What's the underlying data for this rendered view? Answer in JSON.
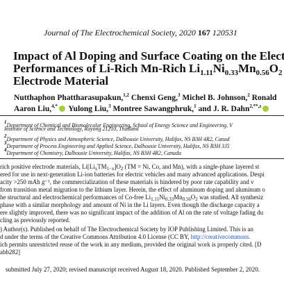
{
  "header": {
    "journal_name": "Journal of The Electrochemical Society",
    "year": ", 2020 ",
    "volume": "167",
    "article_number": " 120531"
  },
  "title": {
    "line1": "Impact of Al Doping and Surface Coating on the Electr",
    "line2_pre": "Performances of Li-Rich Mn-Rich Li",
    "line2_sub1": "1.11",
    "line2_mid1": "Ni",
    "line2_sub2": "0.33",
    "line2_mid2": "Mn",
    "line2_sub3": "0.56",
    "line2_mid3": "O",
    "line2_sub4": "2",
    "line3": "Electrode Material"
  },
  "authors": {
    "a1_name": "Nutthaphon Phattharasupakun,",
    "a1_sup": "1,2",
    "a2_name": " Chenxi Geng,",
    "a2_sup": "3",
    "a3_name": " Michel B. Johnson,",
    "a3_sup": "2",
    "a4_name": " Ronald",
    "a5_name": "Aaron Liu,",
    "a5_sup": "4,*",
    "a6_name": " Yulong Liu,",
    "a6_sup": "3",
    "a7_name": " Montree Sawangphruk,",
    "a7_sup": "1",
    "a8_name": " and J. R. Dahn",
    "a8_sup": "2,**,z"
  },
  "affiliations": [
    {
      "num": "1",
      "line1": "Department of Chemical and Biomolecular Engineering, School of Energy Science and Engineering, V",
      "line2": "Institute of Science and Technology, Rayong 21210, Thailand"
    },
    {
      "num": "2",
      "line1": "Department of Physics and Atmospheric Science, Dalhousie University, Halifax, NS B3H 4R2, Canad"
    },
    {
      "num": "3",
      "line1": "Department of Process Engineering and Applied Science, Dalhousie University, Halifax, NS B3H 3J5"
    },
    {
      "num": "4",
      "line1": "Department of Chemistry, Dalhousie University, Halifax, NS B3H 4R2, Canada"
    }
  ],
  "abstract": {
    "l1_pre": "rich positive electrode materials, Li[Li",
    "l1_sub1": "x",
    "l1_mid": "TM",
    "l1_sub2": "1−x",
    "l1_post": "]O",
    "l1_sub3": "2",
    "l1_end": " (TM = Ni, Co, and Mn), with a single-phase layered st",
    "l2": "ered for use in next-generation Li-ion batteries for electric vehicles and many advanced applications. Despi",
    "l3": "acity >250 mAh g⁻¹, the commercialization of these materials is hindered by poor rate capability and v",
    "l4": "from transition metal migration to the lithium layer. Herein, the effect of aluminum doping and aluminum o",
    "l5_pre": "he structural and electrochemical performances of Co-free Li",
    "l5_sub1": "1.11",
    "l5_mid1": "Ni",
    "l5_sub2": "0.33",
    "l5_mid2": "Mn",
    "l5_sub3": "0.56",
    "l5_mid3": "O",
    "l5_sub4": "2",
    "l5_post": " was studied. All synthesiz",
    "l6": "phase with a similar morphology and amount of Ni in the Li layers. Even though the discharge capacity a",
    "l7": "ere slightly improved, there was no significant impact of the addition of Al on the rate of voltage fading du",
    "l8": "cling as previously reported.",
    "l9": ") Author(s). Published on behalf of The Electrochemical Society by IOP Publishing Limited. This is an",
    "l10_pre": "d under the terms of the Creative Commons Attribution 4.0 License (CC BY, ",
    "l10_link": "http://creativecommons.",
    "l11": "ich permits unrestricted reuse of the work in any medium, provided the original work is properly cited. [D",
    "l12": "abb282]"
  },
  "footer": {
    "history": "submitted July 27, 2020; revised manuscript received August 18, 2020. Published September 2, 2020."
  }
}
